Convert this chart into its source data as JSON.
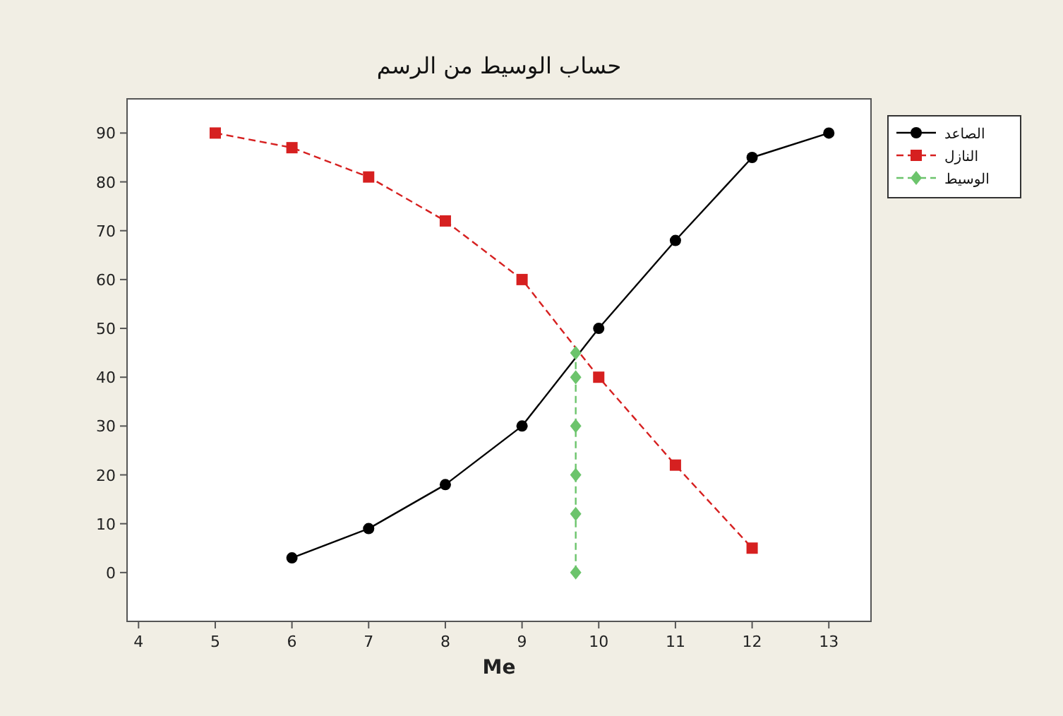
{
  "chart_data": {
    "type": "line",
    "title": "حساب الوسيط من الرسم",
    "xlabel": "Me",
    "xlim": [
      3.85,
      13.55
    ],
    "ylim": [
      -10,
      97
    ],
    "xticks": [
      4,
      5,
      6,
      7,
      8,
      9,
      10,
      11,
      12,
      13
    ],
    "yticks": [
      0,
      10,
      20,
      30,
      40,
      50,
      60,
      70,
      80,
      90
    ],
    "legend": "right",
    "series": [
      {
        "name": "الصاعد",
        "color": "#000000",
        "marker": "circle",
        "line_style": "solid",
        "x": [
          6,
          7,
          8,
          9,
          10,
          11,
          12,
          13
        ],
        "values": [
          3,
          9,
          18,
          30,
          50,
          68,
          85,
          90
        ]
      },
      {
        "name": "النازل",
        "color": "#d62020",
        "marker": "square",
        "line_style": "dashed",
        "x": [
          5,
          6,
          7,
          8,
          9,
          10,
          11,
          12
        ],
        "values": [
          90,
          87,
          81,
          72,
          60,
          40,
          22,
          5
        ]
      },
      {
        "name": "الوسيط",
        "color": "#6cc46c",
        "marker": "diamond",
        "line_style": "dashed",
        "x": [
          9.7,
          9.7,
          9.7,
          9.7,
          9.7,
          9.7
        ],
        "values": [
          0,
          12,
          20,
          30,
          40,
          45
        ]
      }
    ]
  }
}
